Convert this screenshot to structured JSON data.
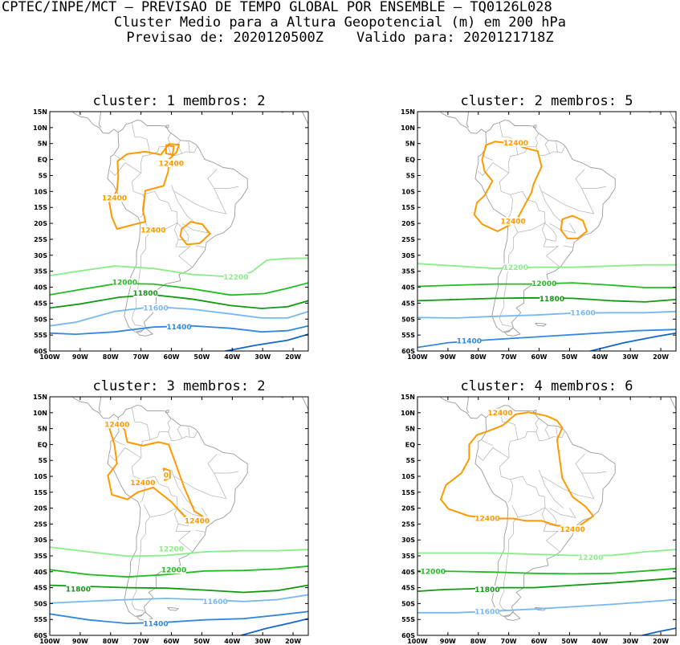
{
  "header": {
    "line1": "CPTEC/INPE/MCT – PREVISAO DE TEMPO GLOBAL POR ENSEMBLE – TQ0126L028",
    "line2": "Cluster Medio para a Altura Geopotencial (m) em 200 hPa",
    "line3": "Previsao de: 2020120500Z    Valido para: 2020121718Z"
  },
  "map_axes": {
    "lat_labels": [
      "15N",
      "10N",
      "5N",
      "EQ",
      "5S",
      "10S",
      "15S",
      "20S",
      "25S",
      "30S",
      "35S",
      "40S",
      "45S",
      "50S",
      "55S",
      "60S"
    ],
    "lon_labels": [
      "100W",
      "90W",
      "80W",
      "70W",
      "60W",
      "50W",
      "40W",
      "30W",
      "20W"
    ]
  },
  "contour_colors": {
    "12400": "#ff9900",
    "12200": "#88ee88",
    "12000": "#22bb22",
    "11800": "#119911",
    "11600": "#77b8f0",
    "11400": "#3388dd",
    "11200": "#1166cc"
  },
  "panels": [
    {
      "title": "cluster: 1   membros: 2",
      "contour_labels": {
        "c12400": [
          "12400",
          "12400",
          "12400"
        ],
        "c12200": "12200",
        "c12000": "12000",
        "c11800": "11800",
        "c11600": "11600",
        "c11400": "11400"
      }
    },
    {
      "title": "cluster: 2   membros: 5",
      "contour_labels": {
        "c12400": [
          "12400",
          "12400"
        ],
        "c12200": "12200",
        "c12000": "12000",
        "c11800": "11800",
        "c11600": "11600",
        "c11400": "11400"
      }
    },
    {
      "title": "cluster: 3   membros: 2",
      "contour_labels": {
        "c12400": [
          "12400",
          "12400",
          "12400",
          "0"
        ],
        "c12200": "12200",
        "c12000": "12000",
        "c11800": "11800",
        "c11600": "11600",
        "c11400": "11400"
      }
    },
    {
      "title": "cluster: 4   membros: 6",
      "contour_labels": {
        "c12400": [
          "12400",
          "12400",
          "12400"
        ],
        "c12200": "12200",
        "c12000": "12000",
        "c11800": "11800",
        "c11600": "11600"
      }
    }
  ]
}
